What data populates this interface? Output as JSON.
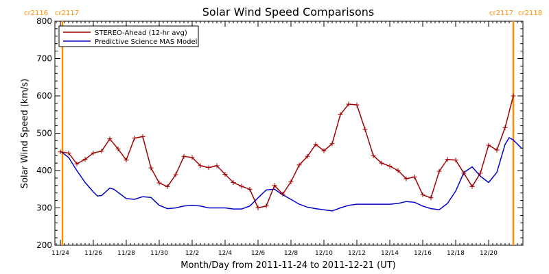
{
  "chart_data": {
    "type": "line",
    "title": "Solar Wind Speed Comparisons",
    "xlabel": "Month/Day from 2011-11-24 to 2011-12-21 (UT)",
    "ylabel": "Solar Wind Speed (km/s)",
    "ylim": [
      200,
      800
    ],
    "xlim": [
      "2011-11-24",
      "2011-12-21"
    ],
    "yticks": [
      "200",
      "300",
      "400",
      "500",
      "600",
      "700",
      "800"
    ],
    "xticks": [
      {
        "date": "2011-11-24",
        "label": "11/24"
      },
      {
        "date": "2011-11-26",
        "label": "11/26"
      },
      {
        "date": "2011-11-28",
        "label": "11/28"
      },
      {
        "date": "2011-11-30",
        "label": "11/30"
      },
      {
        "date": "2011-12-02",
        "label": "12/2"
      },
      {
        "date": "2011-12-04",
        "label": "12/4"
      },
      {
        "date": "2011-12-06",
        "label": "12/6"
      },
      {
        "date": "2011-12-08",
        "label": "12/8"
      },
      {
        "date": "2011-12-10",
        "label": "12/10"
      },
      {
        "date": "2011-12-12",
        "label": "12/12"
      },
      {
        "date": "2011-12-14",
        "label": "12/14"
      },
      {
        "date": "2011-12-16",
        "label": "12/16"
      },
      {
        "date": "2011-12-18",
        "label": "12/18"
      },
      {
        "date": "2011-12-20",
        "label": "12/20"
      }
    ],
    "carrington_markers": [
      {
        "date": "2011-11-24 03:00",
        "label_left": "cr2116",
        "label_right": "cr2117",
        "color": "#ff8c00"
      },
      {
        "date": "2011-12-21 12:00",
        "label_left": "cr2117",
        "label_right": "cr2118",
        "color": "#ff8c00"
      }
    ],
    "legend_position": "top-left",
    "grid": false,
    "series": [
      {
        "name": "STEREO-Ahead (12-hr avg)",
        "color": "#a00000",
        "marker": "plus",
        "points": [
          [
            "2011-11-24 00:00",
            450
          ],
          [
            "2011-11-24 12:00",
            447
          ],
          [
            "2011-11-25 00:00",
            418
          ],
          [
            "2011-11-25 12:00",
            430
          ],
          [
            "2011-11-26 00:00",
            447
          ],
          [
            "2011-11-26 12:00",
            452
          ],
          [
            "2011-11-27 00:00",
            485
          ],
          [
            "2011-11-27 12:00",
            458
          ],
          [
            "2011-11-28 00:00",
            428
          ],
          [
            "2011-11-28 12:00",
            487
          ],
          [
            "2011-11-29 00:00",
            491
          ],
          [
            "2011-11-29 12:00",
            407
          ],
          [
            "2011-11-30 00:00",
            367
          ],
          [
            "2011-11-30 12:00",
            357
          ],
          [
            "2011-12-01 00:00",
            389
          ],
          [
            "2011-12-01 12:00",
            438
          ],
          [
            "2011-12-02 00:00",
            435
          ],
          [
            "2011-12-02 12:00",
            413
          ],
          [
            "2011-12-03 00:00",
            408
          ],
          [
            "2011-12-03 12:00",
            413
          ],
          [
            "2011-12-04 00:00",
            390
          ],
          [
            "2011-12-04 12:00",
            368
          ],
          [
            "2011-12-05 00:00",
            358
          ],
          [
            "2011-12-05 12:00",
            350
          ],
          [
            "2011-12-06 00:00",
            300
          ],
          [
            "2011-12-06 12:00",
            305
          ],
          [
            "2011-12-07 00:00",
            360
          ],
          [
            "2011-12-07 12:00",
            337
          ],
          [
            "2011-12-08 00:00",
            370
          ],
          [
            "2011-12-08 12:00",
            415
          ],
          [
            "2011-12-09 00:00",
            438
          ],
          [
            "2011-12-09 12:00",
            470
          ],
          [
            "2011-12-10 00:00",
            453
          ],
          [
            "2011-12-10 12:00",
            472
          ],
          [
            "2011-12-11 00:00",
            550
          ],
          [
            "2011-12-11 12:00",
            578
          ],
          [
            "2011-12-12 00:00",
            576
          ],
          [
            "2011-12-12 12:00",
            510
          ],
          [
            "2011-12-13 00:00",
            440
          ],
          [
            "2011-12-13 12:00",
            420
          ],
          [
            "2011-12-14 00:00",
            412
          ],
          [
            "2011-12-14 12:00",
            400
          ],
          [
            "2011-12-15 00:00",
            378
          ],
          [
            "2011-12-15 12:00",
            383
          ],
          [
            "2011-12-16 00:00",
            335
          ],
          [
            "2011-12-16 12:00",
            327
          ],
          [
            "2011-12-17 00:00",
            398
          ],
          [
            "2011-12-17 12:00",
            430
          ],
          [
            "2011-12-18 00:00",
            428
          ],
          [
            "2011-12-18 12:00",
            393
          ],
          [
            "2011-12-19 00:00",
            357
          ],
          [
            "2011-12-19 12:00",
            393
          ],
          [
            "2011-12-20 00:00",
            468
          ],
          [
            "2011-12-20 12:00",
            455
          ],
          [
            "2011-12-21 00:00",
            515
          ],
          [
            "2011-12-21 12:00",
            600
          ]
        ]
      },
      {
        "name": "Predictive Science MAS Model",
        "color": "#0000cc",
        "marker": "none",
        "points": [
          [
            "2011-11-24 00:00",
            452
          ],
          [
            "2011-11-24 12:00",
            435
          ],
          [
            "2011-11-25 00:00",
            400
          ],
          [
            "2011-11-25 12:00",
            368
          ],
          [
            "2011-11-26 00:00",
            343
          ],
          [
            "2011-11-26 06:00",
            332
          ],
          [
            "2011-11-26 12:00",
            333
          ],
          [
            "2011-11-27 00:00",
            353
          ],
          [
            "2011-11-27 06:00",
            350
          ],
          [
            "2011-11-28 00:00",
            325
          ],
          [
            "2011-11-28 12:00",
            323
          ],
          [
            "2011-11-29 00:00",
            330
          ],
          [
            "2011-11-29 12:00",
            328
          ],
          [
            "2011-11-30 00:00",
            307
          ],
          [
            "2011-11-30 12:00",
            298
          ],
          [
            "2011-12-01 00:00",
            300
          ],
          [
            "2011-12-01 12:00",
            305
          ],
          [
            "2011-12-02 00:00",
            307
          ],
          [
            "2011-12-02 12:00",
            305
          ],
          [
            "2011-12-03 00:00",
            300
          ],
          [
            "2011-12-03 12:00",
            300
          ],
          [
            "2011-12-04 00:00",
            300
          ],
          [
            "2011-12-04 12:00",
            297
          ],
          [
            "2011-12-05 00:00",
            297
          ],
          [
            "2011-12-05 12:00",
            305
          ],
          [
            "2011-12-06 00:00",
            327
          ],
          [
            "2011-12-06 12:00",
            348
          ],
          [
            "2011-12-07 00:00",
            350
          ],
          [
            "2011-12-07 12:00",
            335
          ],
          [
            "2011-12-08 00:00",
            323
          ],
          [
            "2011-12-08 12:00",
            310
          ],
          [
            "2011-12-09 00:00",
            302
          ],
          [
            "2011-12-09 12:00",
            298
          ],
          [
            "2011-12-10 00:00",
            295
          ],
          [
            "2011-12-10 12:00",
            292
          ],
          [
            "2011-12-11 00:00",
            300
          ],
          [
            "2011-12-11 12:00",
            307
          ],
          [
            "2011-12-12 00:00",
            310
          ],
          [
            "2011-12-12 12:00",
            310
          ],
          [
            "2011-12-13 00:00",
            310
          ],
          [
            "2011-12-13 12:00",
            310
          ],
          [
            "2011-12-14 00:00",
            310
          ],
          [
            "2011-12-14 12:00",
            312
          ],
          [
            "2011-12-15 00:00",
            317
          ],
          [
            "2011-12-15 12:00",
            315
          ],
          [
            "2011-12-16 00:00",
            305
          ],
          [
            "2011-12-16 12:00",
            298
          ],
          [
            "2011-12-17 00:00",
            295
          ],
          [
            "2011-12-17 12:00",
            312
          ],
          [
            "2011-12-18 00:00",
            345
          ],
          [
            "2011-12-18 12:00",
            395
          ],
          [
            "2011-12-19 00:00",
            410
          ],
          [
            "2011-12-19 12:00",
            385
          ],
          [
            "2011-12-20 00:00",
            368
          ],
          [
            "2011-12-20 12:00",
            395
          ],
          [
            "2011-12-21 00:00",
            470
          ],
          [
            "2011-12-21 06:00",
            488
          ],
          [
            "2011-12-21 12:00",
            482
          ],
          [
            "2011-12-22 00:00",
            460
          ]
        ]
      }
    ]
  }
}
